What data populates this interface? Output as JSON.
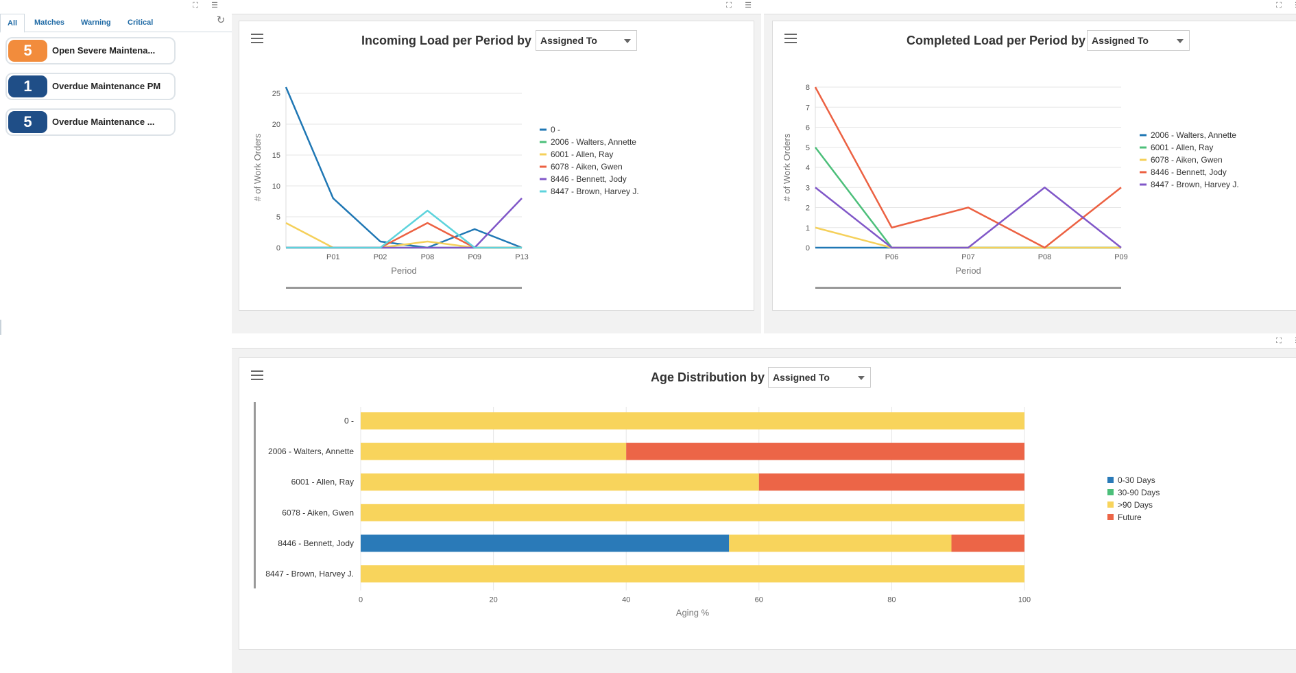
{
  "left_panel": {
    "tabs": [
      {
        "label": "All"
      },
      {
        "label": "Matches"
      },
      {
        "label": "Warning"
      },
      {
        "label": "Critical"
      }
    ],
    "alerts": [
      {
        "count": "5",
        "label": "Open Severe Maintena...",
        "color": "#f28c3c"
      },
      {
        "count": "1",
        "label": "Overdue Maintenance PM",
        "color": "#1f4e87"
      },
      {
        "count": "5",
        "label": "Overdue Maintenance ...",
        "color": "#1f4e87"
      }
    ]
  },
  "incoming": {
    "title": "Incoming Load per Period by",
    "dropdown_value": "Assigned To",
    "chart_data": {
      "type": "line",
      "categories": [
        "",
        "P01",
        "P02",
        "P08",
        "P09",
        "P13"
      ],
      "series": [
        {
          "name": "0 -",
          "color": "#1f77b4",
          "values": [
            26,
            8,
            1,
            0,
            3,
            0
          ]
        },
        {
          "name": "2006 - Walters, Annette",
          "color": "#4cbf7a",
          "values": [
            0,
            0,
            0,
            0,
            0,
            0
          ]
        },
        {
          "name": "6001 - Allen, Ray",
          "color": "#f5d05a",
          "values": [
            4,
            0,
            0,
            1,
            0,
            0
          ]
        },
        {
          "name": "6078 - Aiken, Gwen",
          "color": "#ec6142",
          "values": [
            0,
            0,
            0,
            4,
            0,
            0
          ]
        },
        {
          "name": "8446 - Bennett, Jody",
          "color": "#8057c8",
          "values": [
            0,
            0,
            0,
            0,
            0,
            8
          ]
        },
        {
          "name": "8447 - Brown, Harvey J.",
          "color": "#5dd3dc",
          "values": [
            0,
            0,
            0,
            6,
            0,
            0
          ]
        }
      ],
      "ylabel": "# of Work Orders",
      "xlabel": "Period",
      "yticks": [
        0,
        5,
        10,
        15,
        20,
        25
      ],
      "ylim": [
        0,
        26
      ]
    }
  },
  "completed": {
    "title": "Completed Load per Period by",
    "dropdown_value": "Assigned To",
    "chart_data": {
      "type": "line",
      "categories": [
        "",
        "P06",
        "P07",
        "P08",
        "P09"
      ],
      "series": [
        {
          "name": "2006 - Walters, Annette",
          "color": "#1f77b4",
          "values": [
            0,
            0,
            0,
            0,
            0
          ]
        },
        {
          "name": "6001 - Allen, Ray",
          "color": "#4cbf7a",
          "values": [
            5,
            0,
            0,
            0,
            0
          ]
        },
        {
          "name": "6078 - Aiken, Gwen",
          "color": "#f5d05a",
          "values": [
            1,
            0,
            0,
            0,
            0
          ]
        },
        {
          "name": "8446 - Bennett, Jody",
          "color": "#ec6142",
          "values": [
            8,
            1,
            2,
            0,
            3
          ]
        },
        {
          "name": "8447 - Brown, Harvey J.",
          "color": "#8057c8",
          "values": [
            3,
            0,
            0,
            3,
            0
          ]
        }
      ],
      "ylabel": "# of Work Orders",
      "xlabel": "Period",
      "yticks": [
        0,
        1,
        2,
        3,
        4,
        5,
        6,
        7,
        8
      ],
      "ylim": [
        0,
        8
      ]
    }
  },
  "age": {
    "title": "Age Distribution by",
    "dropdown_value": "Assigned To",
    "chart_data": {
      "type": "bar",
      "orientation": "horizontal",
      "stacked": true,
      "categories": [
        "0 -",
        "2006 - Walters, Annette",
        "6001 - Allen, Ray",
        "6078 - Aiken, Gwen",
        "8446 - Bennett, Jody",
        "8447 - Brown, Harvey J."
      ],
      "series": [
        {
          "name": "0-30 Days",
          "color": "#2a7ab8",
          "values": [
            0,
            0,
            0,
            0,
            55.5,
            0
          ]
        },
        {
          "name": "30-90 Days",
          "color": "#4cbf7a",
          "values": [
            0,
            0,
            0,
            0,
            0,
            0
          ]
        },
        {
          "name": ">90 Days",
          "color": "#f8d45c",
          "values": [
            100,
            40,
            60,
            100,
            33.5,
            100
          ]
        },
        {
          "name": "Future",
          "color": "#ec6547",
          "values": [
            0,
            60,
            40,
            0,
            11,
            0
          ]
        }
      ],
      "xlabel": "Aging %",
      "xticks": [
        0,
        20,
        40,
        60,
        80,
        100
      ],
      "xlim": [
        0,
        100
      ]
    }
  }
}
